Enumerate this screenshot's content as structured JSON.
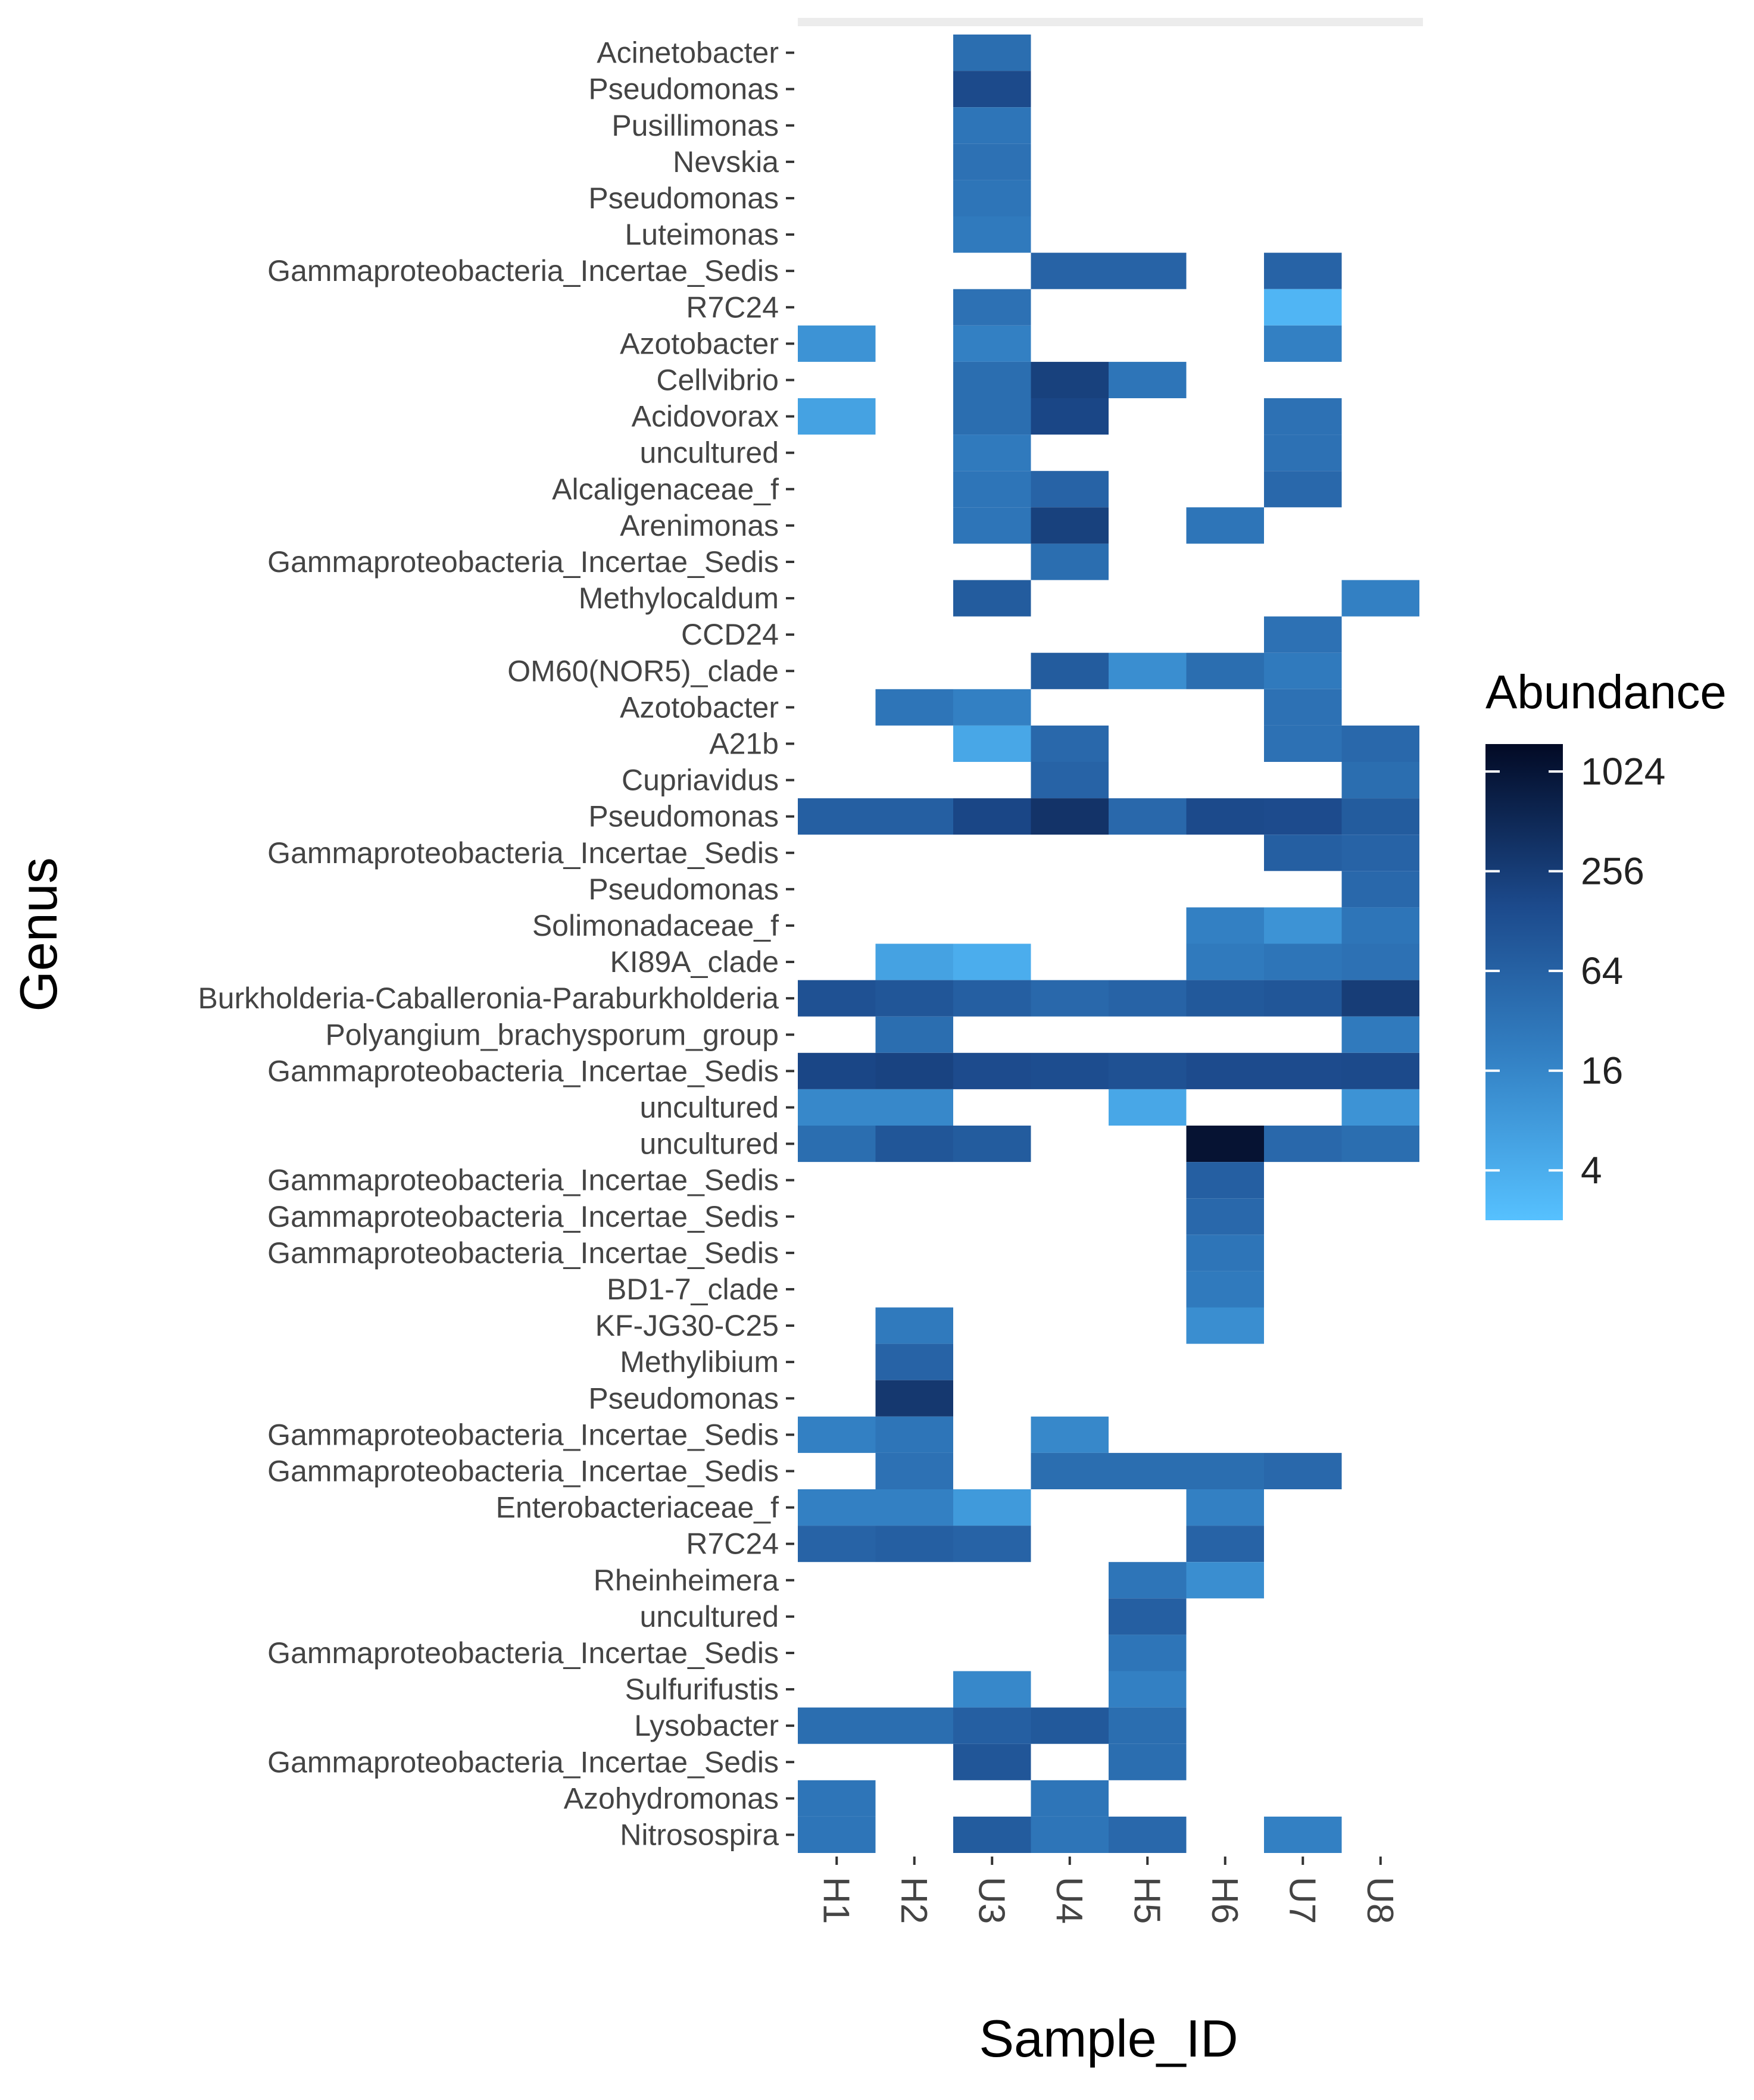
{
  "chart_data": {
    "type": "heatmap",
    "xlabel": "Sample_ID",
    "ylabel": "Genus",
    "samples": [
      "H1",
      "H2",
      "U3",
      "U4",
      "H5",
      "H6",
      "U7",
      "U8"
    ],
    "genera": [
      "Acinetobacter",
      "Pseudomonas",
      "Pusillimonas",
      "Nevskia",
      "Pseudomonas",
      "Luteimonas",
      "Gammaproteobacteria_Incertae_Sedis",
      "R7C24",
      "Azotobacter",
      "Cellvibrio",
      "Acidovorax",
      "uncultured",
      "Alcaligenaceae_f",
      "Arenimonas",
      "Gammaproteobacteria_Incertae_Sedis",
      "Methylocaldum",
      "CCD24",
      "OM60(NOR5)_clade",
      "Azotobacter",
      "A21b",
      "Cupriavidus",
      "Pseudomonas",
      "Gammaproteobacteria_Incertae_Sedis",
      "Pseudomonas",
      "Solimonadaceae_f",
      "KI89A_clade",
      "Burkholderia-Caballeronia-Paraburkholderia",
      "Polyangium_brachysporum_group",
      "Gammaproteobacteria_Incertae_Sedis",
      "uncultured",
      "uncultured",
      "Gammaproteobacteria_Incertae_Sedis",
      "Gammaproteobacteria_Incertae_Sedis",
      "Gammaproteobacteria_Incertae_Sedis",
      "BD1-7_clade",
      "KF-JG30-C25",
      "Methylibium",
      "Pseudomonas",
      "Gammaproteobacteria_Incertae_Sedis",
      "Gammaproteobacteria_Incertae_Sedis",
      "Enterobacteriaceae_f",
      "R7C24",
      "Rheinheimera",
      "uncultured",
      "Gammaproteobacteria_Incertae_Sedis",
      "Sulfurifustis",
      "Lysobacter",
      "Gammaproteobacteria_Incertae_Sedis",
      "Azohydromonas",
      "Nitrosospira"
    ],
    "values": [
      [
        null,
        null,
        40,
        null,
        null,
        null,
        null,
        null
      ],
      [
        null,
        null,
        160,
        null,
        null,
        null,
        null,
        null
      ],
      [
        null,
        null,
        30,
        null,
        null,
        null,
        null,
        null
      ],
      [
        null,
        null,
        35,
        null,
        null,
        null,
        null,
        null
      ],
      [
        null,
        null,
        30,
        null,
        null,
        null,
        null,
        null
      ],
      [
        null,
        null,
        25,
        null,
        null,
        null,
        null,
        null
      ],
      [
        null,
        null,
        null,
        60,
        60,
        null,
        60,
        null
      ],
      [
        null,
        null,
        35,
        null,
        null,
        null,
        3,
        null
      ],
      [
        10,
        null,
        20,
        null,
        null,
        null,
        20,
        null
      ],
      [
        null,
        null,
        40,
        220,
        30,
        null,
        null,
        null
      ],
      [
        6,
        null,
        40,
        180,
        null,
        null,
        35,
        null
      ],
      [
        null,
        null,
        25,
        null,
        null,
        null,
        35,
        null
      ],
      [
        null,
        null,
        30,
        60,
        null,
        null,
        50,
        null
      ],
      [
        null,
        null,
        30,
        220,
        null,
        30,
        null,
        null
      ],
      [
        null,
        null,
        null,
        40,
        null,
        null,
        null,
        null
      ],
      [
        null,
        null,
        80,
        null,
        null,
        null,
        null,
        20
      ],
      [
        null,
        null,
        null,
        null,
        null,
        null,
        35,
        null
      ],
      [
        null,
        null,
        null,
        80,
        12,
        40,
        25,
        null
      ],
      [
        null,
        30,
        20,
        null,
        null,
        null,
        35,
        null
      ],
      [
        null,
        null,
        5,
        50,
        null,
        null,
        35,
        50
      ],
      [
        null,
        null,
        null,
        60,
        null,
        null,
        null,
        40
      ],
      [
        70,
        70,
        180,
        350,
        50,
        160,
        150,
        80
      ],
      [
        null,
        null,
        null,
        null,
        null,
        null,
        70,
        60
      ],
      [
        null,
        null,
        null,
        null,
        null,
        null,
        null,
        50
      ],
      [
        null,
        null,
        null,
        null,
        null,
        20,
        10,
        30
      ],
      [
        null,
        6,
        4,
        null,
        null,
        25,
        30,
        35
      ],
      [
        120,
        100,
        70,
        50,
        60,
        90,
        100,
        250
      ],
      [
        null,
        40,
        null,
        null,
        null,
        null,
        null,
        25
      ],
      [
        180,
        200,
        150,
        140,
        120,
        150,
        150,
        160
      ],
      [
        15,
        15,
        null,
        null,
        5,
        null,
        null,
        10
      ],
      [
        40,
        100,
        80,
        null,
        null,
        1100,
        50,
        40
      ],
      [
        null,
        null,
        null,
        null,
        null,
        70,
        null,
        null
      ],
      [
        null,
        null,
        null,
        null,
        null,
        50,
        null,
        null
      ],
      [
        null,
        null,
        null,
        null,
        null,
        30,
        null,
        null
      ],
      [
        null,
        null,
        null,
        null,
        null,
        25,
        null,
        null
      ],
      [
        null,
        25,
        null,
        null,
        null,
        12,
        null,
        null
      ],
      [
        null,
        60,
        null,
        null,
        null,
        null,
        null,
        null
      ],
      [
        null,
        300,
        null,
        null,
        null,
        null,
        null,
        null
      ],
      [
        20,
        30,
        null,
        15,
        null,
        null,
        null,
        null
      ],
      [
        null,
        35,
        null,
        40,
        40,
        40,
        50,
        null
      ],
      [
        20,
        20,
        8,
        null,
        null,
        20,
        null,
        null
      ],
      [
        60,
        70,
        60,
        null,
        null,
        60,
        null,
        null
      ],
      [
        null,
        null,
        null,
        null,
        30,
        12,
        null,
        null
      ],
      [
        null,
        null,
        null,
        null,
        70,
        null,
        null,
        null
      ],
      [
        null,
        null,
        null,
        null,
        30,
        null,
        null,
        null
      ],
      [
        null,
        null,
        15,
        null,
        20,
        null,
        null,
        null
      ],
      [
        40,
        40,
        70,
        90,
        40,
        null,
        null,
        null
      ],
      [
        null,
        null,
        100,
        null,
        40,
        null,
        null,
        null
      ],
      [
        30,
        null,
        null,
        30,
        null,
        null,
        null,
        null
      ],
      [
        30,
        null,
        80,
        30,
        50,
        null,
        20,
        null
      ]
    ],
    "color_scale": {
      "title": "Abundance",
      "type": "log2",
      "min": 2,
      "max": 1500,
      "low_color": "#56c1ff",
      "high_color": "#020a25",
      "breaks": [
        4,
        16,
        64,
        256,
        1024
      ],
      "break_labels": [
        "4",
        "16",
        "64",
        "256",
        "1024"
      ]
    }
  }
}
